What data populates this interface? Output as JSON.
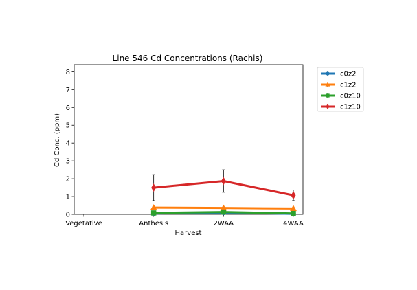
{
  "chart_data": {
    "type": "line",
    "title": "Line 546 Cd Concentrations (Rachis)",
    "xlabel": "Harvest",
    "ylabel": "Cd Conc. (ppm)",
    "categories": [
      "Vegetative",
      "Anthesis",
      "2WAA",
      "4WAA"
    ],
    "ylim": [
      0,
      8.4
    ],
    "yticks": [
      0,
      1,
      2,
      3,
      4,
      5,
      6,
      7,
      8
    ],
    "grid": false,
    "legend_position": "outside-right",
    "series": [
      {
        "name": "c0z2",
        "color": "#1f77b4",
        "marker": "circle",
        "values": [
          null,
          0.05,
          0.1,
          0.03
        ],
        "errors": [
          null,
          0.03,
          0.04,
          0.02
        ]
      },
      {
        "name": "c1z2",
        "color": "#ff7f0e",
        "marker": "triangle-up",
        "values": [
          null,
          0.38,
          0.36,
          0.33
        ],
        "errors": [
          null,
          0.05,
          0.05,
          0.04
        ]
      },
      {
        "name": "c0z10",
        "color": "#2ca02c",
        "marker": "square",
        "values": [
          null,
          0.08,
          0.13,
          0.05
        ],
        "errors": [
          null,
          0.03,
          0.04,
          0.02
        ]
      },
      {
        "name": "c1z10",
        "color": "#d62728",
        "marker": "thin-diamond",
        "values": [
          null,
          1.5,
          1.87,
          1.07
        ],
        "errors": [
          null,
          0.73,
          0.63,
          0.3
        ]
      }
    ]
  }
}
